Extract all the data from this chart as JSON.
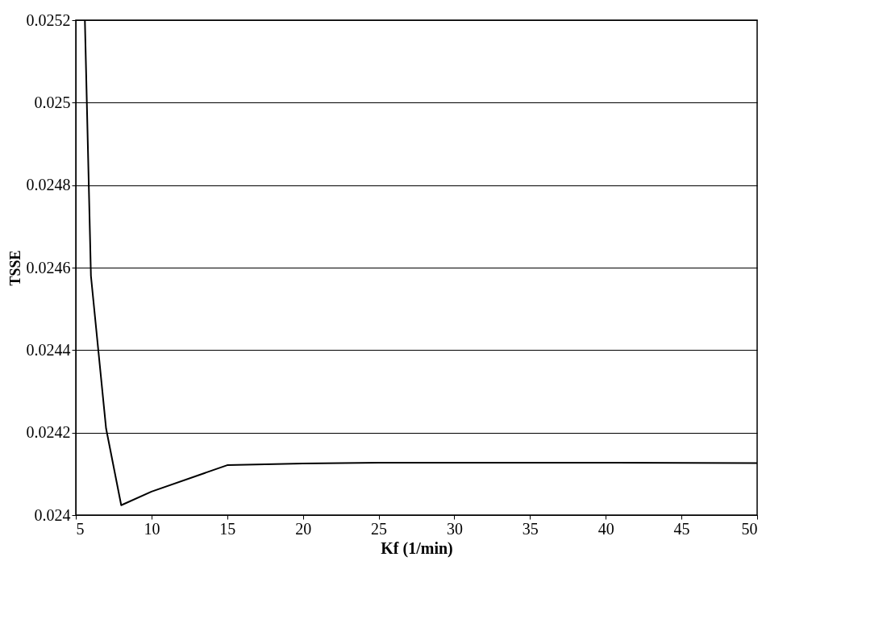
{
  "chart_data": {
    "type": "line",
    "xlabel": "Kf (1/min)",
    "ylabel": "TSSE",
    "x": [
      5.6,
      6,
      7,
      8,
      10,
      15,
      20,
      25,
      30,
      40,
      50
    ],
    "series": [
      {
        "color": "#000000",
        "values": [
          0.0252,
          0.02458,
          0.02421,
          0.024024,
          0.024057,
          0.024121,
          0.024125,
          0.024127,
          0.024127,
          0.024127,
          0.024126
        ]
      }
    ],
    "xlim": [
      5,
      50
    ],
    "xticks": [
      5,
      10,
      15,
      20,
      25,
      30,
      35,
      40,
      45,
      50
    ],
    "ylim": [
      0.024,
      0.0252
    ],
    "yticks": [
      0.024,
      0.0242,
      0.0244,
      0.0246,
      0.0248,
      0.025,
      0.0252
    ],
    "grid": "y",
    "marker": "none",
    "line_style": "solid"
  }
}
